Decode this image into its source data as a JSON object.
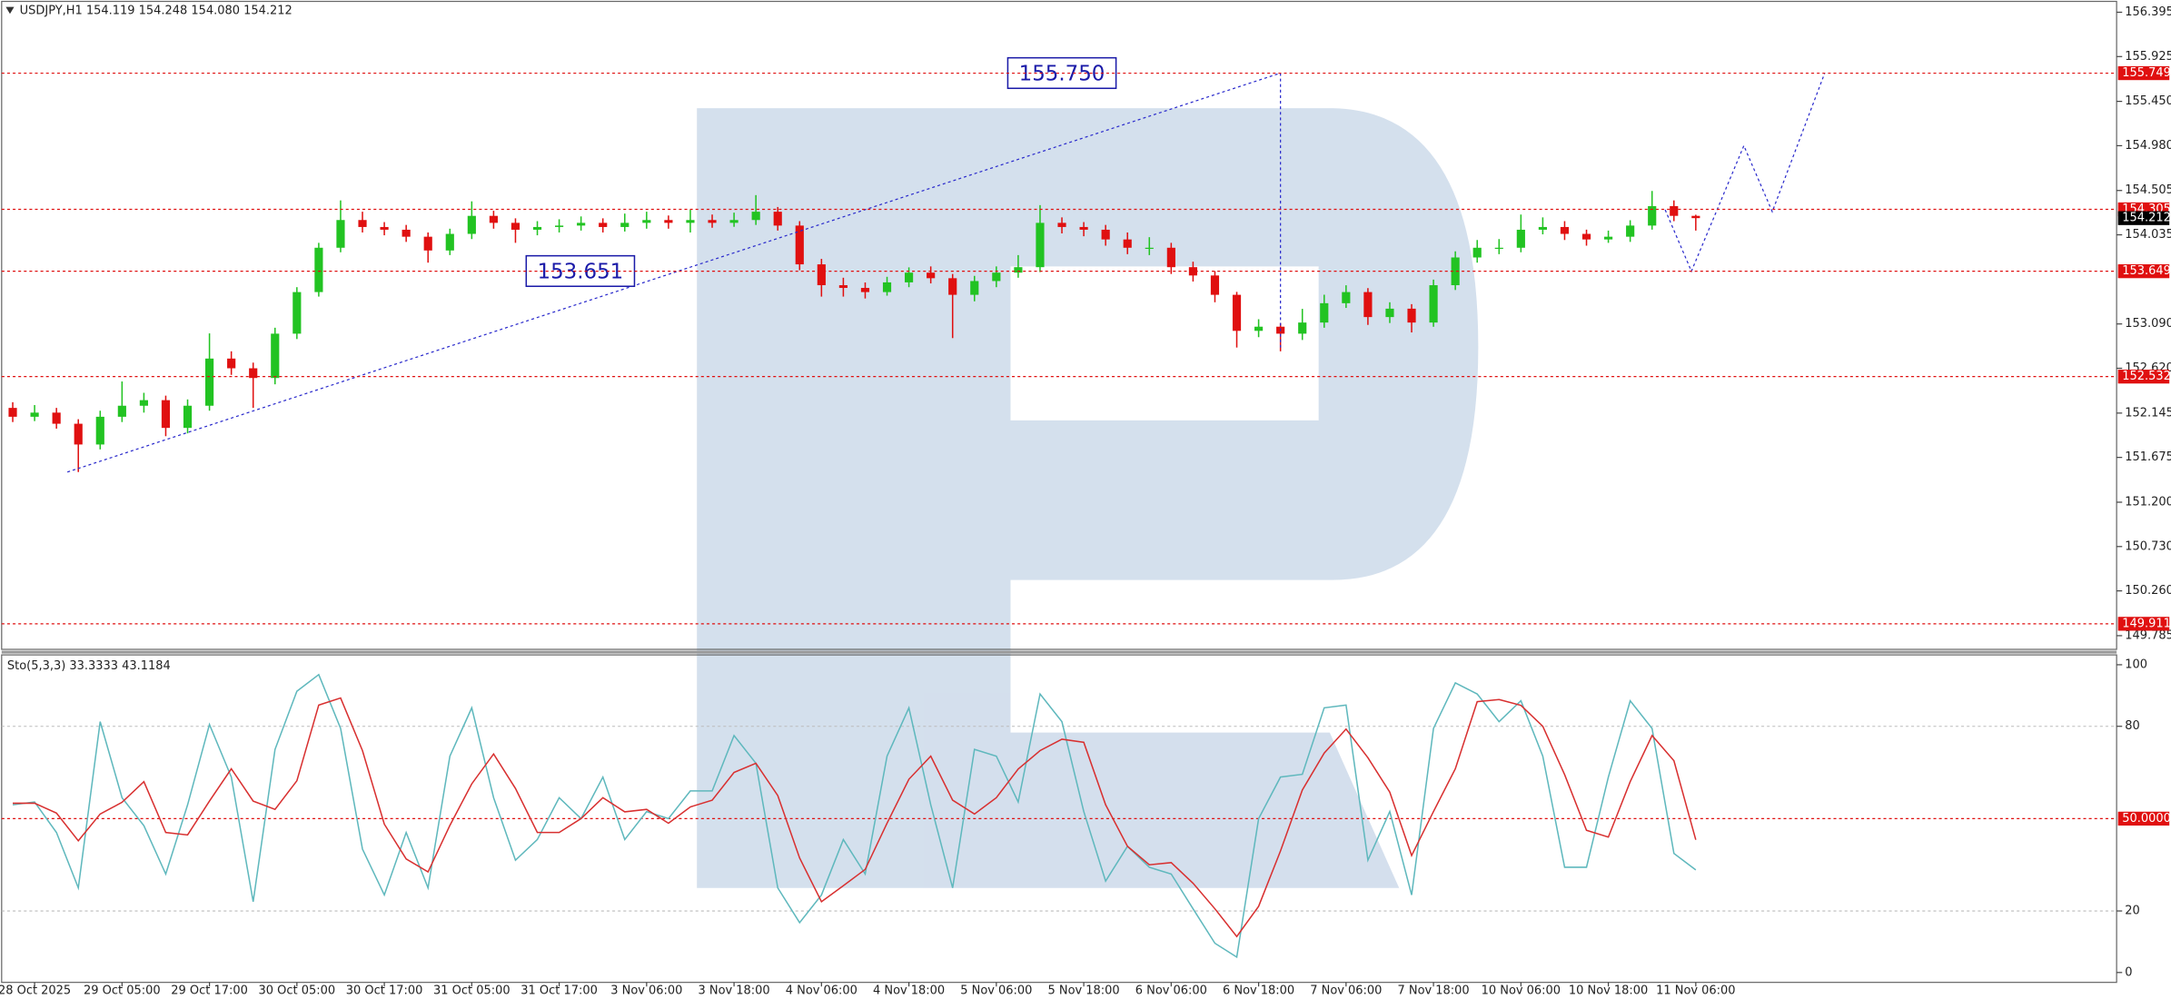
{
  "chart_data": [
    {
      "type": "candlestick",
      "title": "USDJPY,H1  154.119 154.248 154.080 154.212",
      "categories": [
        null,
        "28 Oct 2025",
        null,
        null,
        null,
        "29 Oct 05:00",
        null,
        null,
        null,
        "29 Oct 17:00",
        null,
        null,
        null,
        "30 Oct 05:00",
        null,
        null,
        null,
        "30 Oct 17:00",
        null,
        null,
        null,
        "31 Oct 05:00",
        null,
        null,
        null,
        "31 Oct 17:00",
        null,
        null,
        null,
        "3 Nov 06:00",
        null,
        null,
        null,
        "3 Nov 18:00",
        null,
        null,
        null,
        "4 Nov 06:00",
        null,
        null,
        null,
        "4 Nov 18:00",
        null,
        null,
        null,
        "5 Nov 06:00",
        null,
        null,
        null,
        "5 Nov 18:00",
        null,
        null,
        null,
        "6 Nov 06:00",
        null,
        null,
        null,
        "6 Nov 18:00",
        null,
        null,
        null,
        "7 Nov 06:00",
        null,
        null,
        null,
        "7 Nov 18:00",
        null,
        null,
        null,
        "10 Nov 06:00",
        null,
        null,
        null,
        "10 Nov 18:00",
        null,
        null,
        null,
        "11 Nov 06:00"
      ],
      "open": [
        152.2,
        152.106,
        152.15,
        152.032,
        151.812,
        152.106,
        152.223,
        152.282,
        151.988,
        152.223,
        152.723,
        152.62,
        152.517,
        152.987,
        153.428,
        153.898,
        154.192,
        154.118,
        154.089,
        154.015,
        153.869,
        154.045,
        154.236,
        154.162,
        154.089,
        154.118,
        154.133,
        154.162,
        154.118,
        154.162,
        154.192,
        154.162,
        154.192,
        154.162,
        154.192,
        154.28,
        154.133,
        153.722,
        153.501,
        153.472,
        153.428,
        153.531,
        153.634,
        153.575,
        153.399,
        153.545,
        153.634,
        153.692,
        154.162,
        154.118,
        154.089,
        153.986,
        153.898,
        153.898,
        153.692,
        153.604,
        153.399,
        153.017,
        153.061,
        152.987,
        153.105,
        153.31,
        153.428,
        153.163,
        153.252,
        153.105,
        153.501,
        153.795,
        153.898,
        153.898,
        154.089,
        154.118,
        154.045,
        153.986,
        154.015,
        154.133,
        154.339,
        154.236
      ],
      "high": [
        152.26,
        152.23,
        152.2,
        152.08,
        152.17,
        152.48,
        152.36,
        152.33,
        152.29,
        152.99,
        152.8,
        152.68,
        153.05,
        153.48,
        153.95,
        154.4,
        154.28,
        154.17,
        154.14,
        154.06,
        154.1,
        154.39,
        154.29,
        154.21,
        154.18,
        154.2,
        154.23,
        154.21,
        154.26,
        154.28,
        154.24,
        154.3,
        154.25,
        154.27,
        154.456,
        154.33,
        154.18,
        153.78,
        153.58,
        153.53,
        153.59,
        153.69,
        153.7,
        153.62,
        153.6,
        153.7,
        153.82,
        154.35,
        154.22,
        154.17,
        154.14,
        154.06,
        154.01,
        153.95,
        153.75,
        153.65,
        153.43,
        153.14,
        153.1,
        153.25,
        153.4,
        153.5,
        153.47,
        153.32,
        153.3,
        153.56,
        153.86,
        153.98,
        153.99,
        154.25,
        154.22,
        154.18,
        154.09,
        154.08,
        154.19,
        154.5,
        154.4,
        154.248
      ],
      "low": [
        152.05,
        152.06,
        151.98,
        151.52,
        151.76,
        152.05,
        152.15,
        151.9,
        151.93,
        152.17,
        152.55,
        152.2,
        152.45,
        152.93,
        153.38,
        153.85,
        154.06,
        154.03,
        153.96,
        153.74,
        153.82,
        153.99,
        154.1,
        153.95,
        154.03,
        154.06,
        154.08,
        154.06,
        154.07,
        154.1,
        154.1,
        154.06,
        154.11,
        154.12,
        154.14,
        154.08,
        153.66,
        153.38,
        153.38,
        153.36,
        153.39,
        153.48,
        153.52,
        152.94,
        153.33,
        153.48,
        153.58,
        153.64,
        154.05,
        154.02,
        153.92,
        153.83,
        153.82,
        153.62,
        153.54,
        153.32,
        152.84,
        152.95,
        152.8,
        152.92,
        153.05,
        153.26,
        153.08,
        153.1,
        153,
        153.06,
        153.45,
        153.74,
        153.83,
        153.85,
        154.04,
        153.98,
        153.92,
        153.95,
        153.96,
        154.09,
        154.18,
        154.08
      ],
      "close": [
        152.106,
        152.15,
        152.032,
        151.812,
        152.106,
        152.223,
        152.282,
        151.988,
        152.223,
        152.723,
        152.62,
        152.517,
        152.987,
        153.428,
        153.898,
        154.192,
        154.118,
        154.089,
        154.015,
        153.869,
        154.045,
        154.236,
        154.162,
        154.089,
        154.118,
        154.133,
        154.162,
        154.118,
        154.162,
        154.192,
        154.162,
        154.192,
        154.162,
        154.192,
        154.28,
        154.133,
        153.722,
        153.501,
        153.472,
        153.428,
        153.531,
        153.634,
        153.575,
        153.399,
        153.545,
        153.634,
        153.692,
        154.162,
        154.118,
        154.089,
        153.986,
        153.898,
        153.898,
        153.692,
        153.604,
        153.399,
        153.017,
        153.061,
        152.987,
        153.105,
        153.31,
        153.428,
        153.163,
        153.252,
        153.105,
        153.501,
        153.795,
        153.898,
        153.898,
        154.089,
        154.118,
        154.045,
        153.986,
        154.015,
        154.133,
        154.339,
        154.236,
        154.212
      ],
      "up_color": "#22c322",
      "down_color": "#e01010",
      "ylim": [
        149.64,
        156.51
      ],
      "yticks": [
        156.395,
        155.925,
        {
          "value": 155.45,
          "label": "155.450"
        },
        {
          "value": 154.98,
          "label": "154.980"
        },
        154.505,
        154.035,
        {
          "value": 153.09,
          "label": "153.090"
        },
        {
          "value": 152.62,
          "label": "152.620"
        },
        152.145,
        151.675,
        {
          "value": 151.2,
          "label": "151.200"
        },
        {
          "value": 150.73,
          "label": "150.730"
        },
        {
          "value": 150.26,
          "label": "150.260"
        },
        149.785
      ],
      "levels": [
        155.749,
        154.305,
        153.649,
        152.532,
        149.911
      ],
      "level_color": "#e01010",
      "current_price": 154.212,
      "lines": [
        {
          "x": [
            2.5,
            58
          ],
          "values": [
            151.52,
            155.75
          ]
        },
        {
          "x": [
            58,
            58
          ],
          "values": [
            155.75,
            152.84
          ]
        },
        {
          "x": [
            75.6,
            76.8,
            79.2,
            80.5,
            82.9
          ],
          "values": [
            154.3,
            153.649,
            154.98,
            154.28,
            155.75
          ]
        }
      ],
      "line_color": "#2a2acc",
      "annotations": [
        {
          "value": 155.75,
          "label": "155.750"
        },
        153.651
      ]
    },
    {
      "type": "line",
      "title": "Sto(5,3,3) 33.3333 43.1184",
      "series": [
        {
          "color": "#5fb8bd",
          "values": [
            54.5,
            55.4,
            45.5,
            27.5,
            81.5,
            56.8,
            47.7,
            32,
            54.5,
            80.6,
            63.5,
            23,
            72.5,
            91.4,
            96.8,
            79.3,
            40.1,
            25.2,
            45.5,
            27.5,
            70.3,
            86,
            56.8,
            36.5,
            43.2,
            56.8,
            50,
            63.5,
            43.2,
            52.3,
            50,
            59,
            59,
            77,
            68,
            27.5,
            16.2,
            25.2,
            43.2,
            32,
            70.3,
            86,
            54.5,
            27.5,
            72.5,
            70.3,
            55.4,
            90.5,
            81.5,
            52.3,
            29.7,
            41,
            34.2,
            32,
            20.7,
            9.5,
            5,
            50,
            63.5,
            64.4,
            86,
            86.9,
            36.5,
            52.3,
            25.2,
            79.3,
            94.1,
            90.5,
            81.5,
            88.3,
            70.3,
            34.2,
            34.2,
            63.5,
            88.3,
            79.3,
            38.7,
            33.3333
          ]
        },
        {
          "color": "#d83030",
          "values": [
            55,
            55,
            51.8,
            42.8,
            51.5,
            55.3,
            62,
            45.5,
            44.7,
            55.7,
            66.2,
            55.7,
            53,
            62.3,
            86.9,
            89.2,
            72.1,
            48.2,
            36.9,
            32.7,
            47.8,
            61.3,
            71,
            59.8,
            45.5,
            45.5,
            50,
            56.8,
            52.2,
            53,
            48.5,
            53.8,
            56,
            65,
            68,
            57.5,
            37.2,
            23,
            28.2,
            33.5,
            48.5,
            62.8,
            70.3,
            56,
            51.5,
            56.8,
            66.1,
            72.1,
            75.8,
            74.8,
            54.5,
            41,
            35,
            35.7,
            29,
            20.7,
            11.7,
            21.5,
            39.5,
            59.3,
            71.3,
            79.1,
            69.8,
            58.6,
            38,
            52.3,
            66.2,
            88,
            88.7,
            86.8,
            80,
            64.3,
            46.2,
            44,
            62,
            77,
            68.8,
            43.1184
          ]
        }
      ],
      "ylim": [
        -3.2,
        103.2
      ],
      "yticks": [
        100,
        80,
        20,
        0
      ],
      "level_lines": [
        80,
        20
      ],
      "levels": [
        {
          "value": 50,
          "label": "50.0000"
        }
      ],
      "level_color": "#e01010"
    }
  ]
}
